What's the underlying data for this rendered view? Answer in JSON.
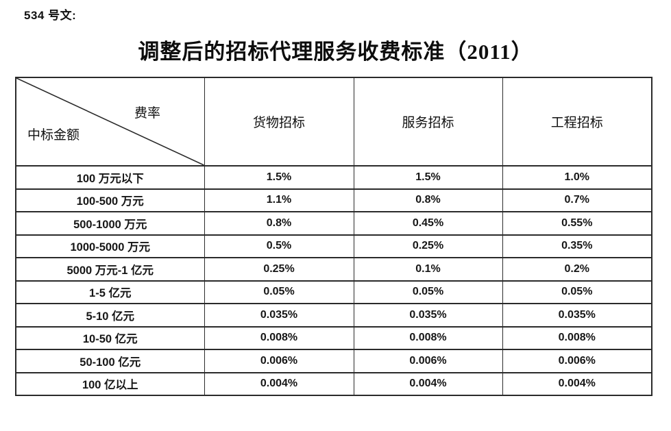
{
  "page": {
    "doc_label": "534 号文:",
    "title": "调整后的招标代理服务收费标准（2011）"
  },
  "table": {
    "corner": {
      "top_right": "费率",
      "bottom_left": "中标金额"
    },
    "columns": [
      "货物招标",
      "服务招标",
      "工程招标"
    ],
    "rows": [
      {
        "label": "100 万元以下",
        "values": [
          "1.5%",
          "1.5%",
          "1.0%"
        ]
      },
      {
        "label": "100-500 万元",
        "values": [
          "1.1%",
          "0.8%",
          "0.7%"
        ]
      },
      {
        "label": "500-1000 万元",
        "values": [
          "0.8%",
          "0.45%",
          "0.55%"
        ]
      },
      {
        "label": "1000-5000 万元",
        "values": [
          "0.5%",
          "0.25%",
          "0.35%"
        ]
      },
      {
        "label": "5000 万元-1 亿元",
        "values": [
          "0.25%",
          "0.1%",
          "0.2%"
        ]
      },
      {
        "label": "1-5 亿元",
        "values": [
          "0.05%",
          "0.05%",
          "0.05%"
        ]
      },
      {
        "label": "5-10 亿元",
        "values": [
          "0.035%",
          "0.035%",
          "0.035%"
        ]
      },
      {
        "label": "10-50 亿元",
        "values": [
          "0.008%",
          "0.008%",
          "0.008%"
        ]
      },
      {
        "label": "50-100 亿元",
        "values": [
          "0.006%",
          "0.006%",
          "0.006%"
        ]
      },
      {
        "label": "100 亿以上",
        "values": [
          "0.004%",
          "0.004%",
          "0.004%"
        ]
      }
    ]
  },
  "colors": {
    "text": "#111111",
    "border": "#2a2a2a",
    "background": "#ffffff"
  }
}
